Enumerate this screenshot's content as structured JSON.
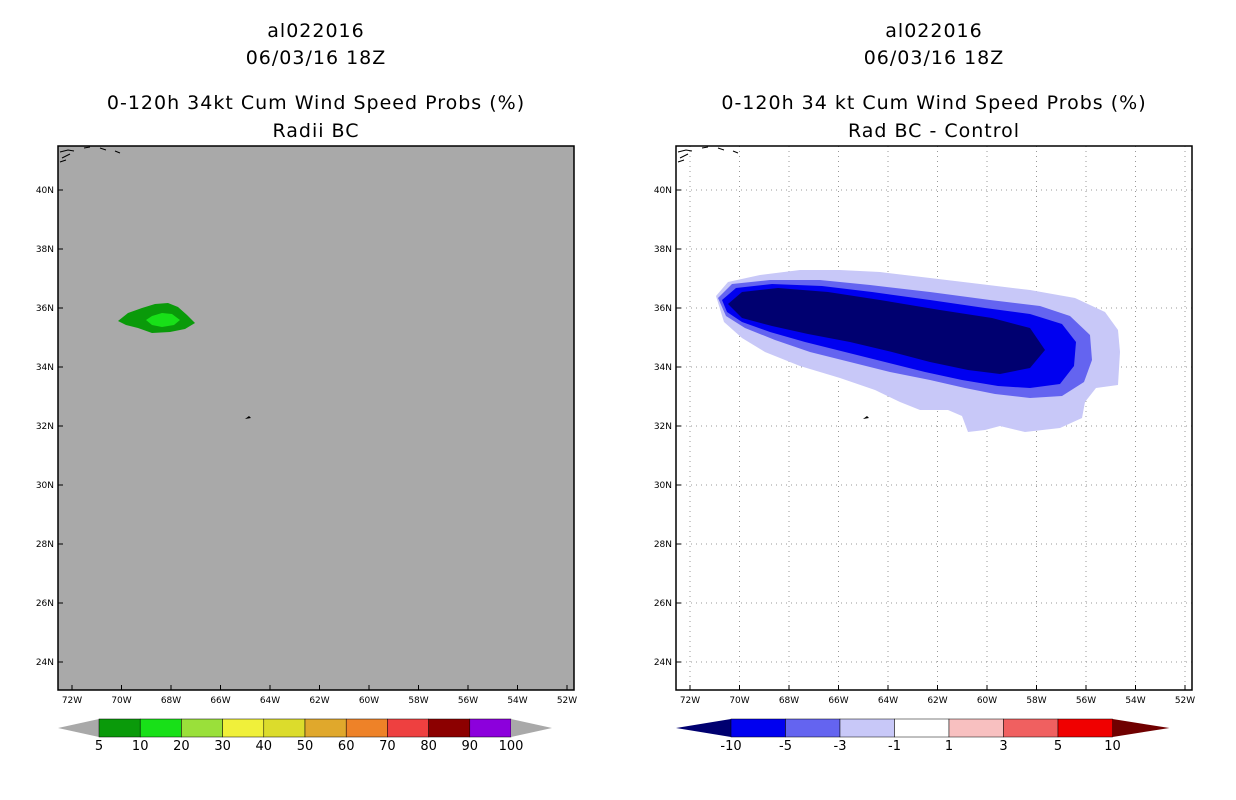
{
  "left_panel": {
    "storm_id": "al022016",
    "datetime": "06/03/16 18Z",
    "title": "0-120h 34kt Cum Wind Speed Probs (%)",
    "subtitle": "Radii BC",
    "background_color": "#a9a9a9",
    "lon_ticks": [
      "72W",
      "70W",
      "68W",
      "66W",
      "64W",
      "62W",
      "60W",
      "58W",
      "56W",
      "54W",
      "52W"
    ],
    "lat_ticks": [
      "40N",
      "38N",
      "36N",
      "34N",
      "32N",
      "30N",
      "28N",
      "26N",
      "24N"
    ],
    "colorbar": {
      "labels": [
        "5",
        "10",
        "20",
        "30",
        "40",
        "50",
        "60",
        "70",
        "80",
        "90",
        "100"
      ],
      "colors": [
        "#0a9a0a",
        "#18e018",
        "#9ae03a",
        "#f0f03a",
        "#dcdc2c",
        "#e0a82c",
        "#ee8228",
        "#ee4040",
        "#8c0000",
        "#8c00dc"
      ],
      "end_color": "#a9a9a9"
    }
  },
  "right_panel": {
    "storm_id": "al022016",
    "datetime": "06/03/16 18Z",
    "title": "0-120h 34 kt Cum Wind Speed Probs (%)",
    "subtitle": "Rad BC - Control",
    "lon_ticks": [
      "72W",
      "70W",
      "68W",
      "66W",
      "64W",
      "62W",
      "60W",
      "58W",
      "56W",
      "54W",
      "52W"
    ],
    "lat_ticks": [
      "40N",
      "38N",
      "36N",
      "34N",
      "32N",
      "30N",
      "28N",
      "26N",
      "24N"
    ],
    "colorbar": {
      "labels": [
        "-10",
        "-5",
        "-3",
        "-1",
        "1",
        "3",
        "5",
        "10"
      ],
      "colors": [
        "#000070",
        "#0000f0",
        "#6464f0",
        "#c8c8f8",
        "#ffffff",
        "#f8c0c0",
        "#f06060",
        "#f00000"
      ],
      "left_end_color": "#000070",
      "right_end_color": "#700000"
    }
  }
}
